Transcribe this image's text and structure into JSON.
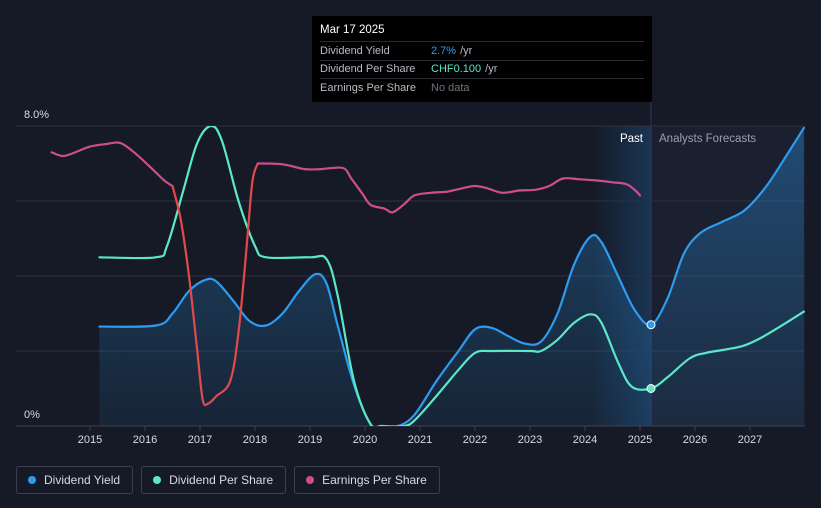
{
  "tooltip": {
    "date": "Mar 17 2025",
    "rows": [
      {
        "label": "Dividend Yield",
        "value": "2.7%",
        "unit": "/yr",
        "color": "#2d9cf0"
      },
      {
        "label": "Dividend Per Share",
        "value": "CHF0.100",
        "unit": "/yr",
        "color": "#5ce8c7"
      },
      {
        "label": "Earnings Per Share",
        "value": "No data",
        "unit": "",
        "color": "#6f7580"
      }
    ]
  },
  "regions": {
    "past": "Past",
    "forecast": "Analysts Forecasts"
  },
  "legend": [
    {
      "label": "Dividend Yield",
      "color": "#2d9cf0"
    },
    {
      "label": "Dividend Per Share",
      "color": "#5ce8c7"
    },
    {
      "label": "Earnings Per Share",
      "color": "#cc4e8f"
    }
  ],
  "chart_data": {
    "type": "line",
    "x_ticks": [
      "2015",
      "2016",
      "2017",
      "2018",
      "2019",
      "2020",
      "2021",
      "2022",
      "2023",
      "2024",
      "2025",
      "2026",
      "2027"
    ],
    "y_axis": {
      "labels": [
        "8.0%",
        "0%"
      ],
      "ylim": [
        0,
        8.0
      ],
      "unit": "%"
    },
    "past_end": 2025.2,
    "grid": true,
    "series": [
      {
        "name": "Dividend Yield",
        "color": "#2d9cf0",
        "fill": true,
        "points": [
          [
            2015.17,
            2.65
          ],
          [
            2016.2,
            2.68
          ],
          [
            2016.5,
            3.0
          ],
          [
            2016.8,
            3.6
          ],
          [
            2017.1,
            3.9
          ],
          [
            2017.3,
            3.85
          ],
          [
            2017.6,
            3.35
          ],
          [
            2017.9,
            2.8
          ],
          [
            2018.2,
            2.68
          ],
          [
            2018.5,
            3.0
          ],
          [
            2018.8,
            3.6
          ],
          [
            2019.1,
            4.05
          ],
          [
            2019.3,
            3.8
          ],
          [
            2019.5,
            2.7
          ],
          [
            2019.8,
            1.1
          ],
          [
            2020.1,
            0.05
          ],
          [
            2020.3,
            0.0
          ],
          [
            2020.6,
            0.0
          ],
          [
            2020.9,
            0.3
          ],
          [
            2021.3,
            1.2
          ],
          [
            2021.7,
            2.0
          ],
          [
            2022.0,
            2.58
          ],
          [
            2022.3,
            2.62
          ],
          [
            2022.6,
            2.4
          ],
          [
            2022.9,
            2.2
          ],
          [
            2023.2,
            2.25
          ],
          [
            2023.5,
            3.0
          ],
          [
            2023.8,
            4.3
          ],
          [
            2024.1,
            5.05
          ],
          [
            2024.3,
            4.9
          ],
          [
            2024.6,
            4.0
          ],
          [
            2024.9,
            3.1
          ],
          [
            2025.2,
            2.7
          ],
          [
            2025.5,
            3.4
          ],
          [
            2025.8,
            4.6
          ],
          [
            2026.1,
            5.15
          ],
          [
            2026.5,
            5.45
          ],
          [
            2026.9,
            5.75
          ],
          [
            2027.3,
            6.4
          ],
          [
            2027.7,
            7.3
          ],
          [
            2027.98,
            7.95
          ]
        ]
      },
      {
        "name": "Dividend Per Share",
        "color": "#5ce8c7",
        "fill": false,
        "points": [
          [
            2015.17,
            4.5
          ],
          [
            2016.2,
            4.5
          ],
          [
            2016.4,
            4.8
          ],
          [
            2016.7,
            6.3
          ],
          [
            2016.95,
            7.55
          ],
          [
            2017.2,
            8.0
          ],
          [
            2017.4,
            7.6
          ],
          [
            2017.7,
            6.0
          ],
          [
            2018.0,
            4.8
          ],
          [
            2018.2,
            4.5
          ],
          [
            2019.0,
            4.5
          ],
          [
            2019.3,
            4.45
          ],
          [
            2019.5,
            3.5
          ],
          [
            2019.8,
            1.2
          ],
          [
            2020.1,
            0.05
          ],
          [
            2020.3,
            0.0
          ],
          [
            2020.7,
            0.0
          ],
          [
            2020.9,
            0.15
          ],
          [
            2021.3,
            0.8
          ],
          [
            2021.7,
            1.5
          ],
          [
            2022.0,
            1.95
          ],
          [
            2022.3,
            2.0
          ],
          [
            2023.0,
            2.0
          ],
          [
            2023.2,
            2.0
          ],
          [
            2023.5,
            2.3
          ],
          [
            2023.8,
            2.75
          ],
          [
            2024.1,
            2.98
          ],
          [
            2024.3,
            2.75
          ],
          [
            2024.6,
            1.7
          ],
          [
            2024.85,
            1.05
          ],
          [
            2025.2,
            1.0
          ],
          [
            2025.5,
            1.3
          ],
          [
            2025.9,
            1.8
          ],
          [
            2026.2,
            1.95
          ],
          [
            2026.6,
            2.05
          ],
          [
            2026.9,
            2.15
          ],
          [
            2027.2,
            2.35
          ],
          [
            2027.6,
            2.7
          ],
          [
            2027.98,
            3.05
          ]
        ]
      },
      {
        "name": "Earnings Per Share",
        "color": "#cc4e8f",
        "fill": false,
        "points": [
          [
            2014.3,
            7.3
          ],
          [
            2014.5,
            7.2
          ],
          [
            2014.7,
            7.28
          ],
          [
            2015.0,
            7.45
          ],
          [
            2015.3,
            7.52
          ],
          [
            2015.55,
            7.55
          ],
          [
            2015.8,
            7.3
          ],
          [
            2016.1,
            6.9
          ],
          [
            2016.35,
            6.55
          ],
          [
            2016.5,
            6.4
          ],
          [
            2016.65,
            5.5
          ],
          [
            2016.8,
            4.0
          ],
          [
            2016.95,
            2.0
          ],
          [
            2017.05,
            0.7
          ],
          [
            2017.15,
            0.6
          ],
          [
            2017.3,
            0.8
          ],
          [
            2017.55,
            1.2
          ],
          [
            2017.7,
            2.5
          ],
          [
            2017.85,
            4.8
          ],
          [
            2017.95,
            6.5
          ],
          [
            2018.05,
            7.0
          ],
          [
            2018.5,
            6.98
          ],
          [
            2018.9,
            6.85
          ],
          [
            2019.2,
            6.85
          ],
          [
            2019.6,
            6.88
          ],
          [
            2019.75,
            6.6
          ],
          [
            2019.95,
            6.2
          ],
          [
            2020.1,
            5.9
          ],
          [
            2020.35,
            5.8
          ],
          [
            2020.5,
            5.7
          ],
          [
            2020.7,
            5.9
          ],
          [
            2020.9,
            6.15
          ],
          [
            2021.2,
            6.22
          ],
          [
            2021.5,
            6.25
          ],
          [
            2021.8,
            6.35
          ],
          [
            2022.0,
            6.4
          ],
          [
            2022.2,
            6.35
          ],
          [
            2022.5,
            6.22
          ],
          [
            2022.8,
            6.28
          ],
          [
            2023.1,
            6.3
          ],
          [
            2023.35,
            6.4
          ],
          [
            2023.6,
            6.6
          ],
          [
            2023.9,
            6.58
          ],
          [
            2024.2,
            6.55
          ],
          [
            2024.5,
            6.5
          ],
          [
            2024.75,
            6.45
          ],
          [
            2024.9,
            6.3
          ],
          [
            2025.0,
            6.15
          ]
        ]
      }
    ],
    "markers": [
      {
        "series": "Dividend Yield",
        "x": 2025.2,
        "y": 2.7
      },
      {
        "series": "Dividend Per Share",
        "x": 2025.2,
        "y": 1.0
      }
    ]
  }
}
